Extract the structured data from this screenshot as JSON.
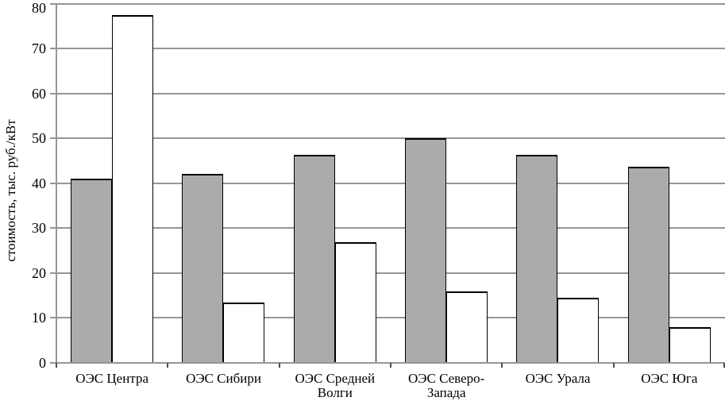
{
  "chart_data": {
    "type": "bar",
    "title": "",
    "xlabel": "",
    "ylabel": "стоимость, тыс. руб./кВт",
    "ylim": [
      0,
      80
    ],
    "yticks": [
      0,
      10,
      20,
      30,
      40,
      50,
      60,
      70,
      80
    ],
    "grid": "horizontal",
    "legend_position": "none",
    "categories": [
      "ОЭС Центра",
      "ОЭС Сибири",
      "ОЭС Средней\nВолги",
      "ОЭС Северо-\nЗапада",
      "ОЭС Урала",
      "ОЭС Юга"
    ],
    "series": [
      {
        "name": "gray-bars",
        "color": "#ABABAB",
        "values": [
          41,
          42,
          46.3,
          50,
          46.3,
          43.7
        ]
      },
      {
        "name": "white-bars",
        "color": "#FFFFFF",
        "values": [
          77.5,
          13.4,
          26.8,
          15.8,
          14.4,
          8
        ]
      }
    ]
  },
  "colors": {
    "background": "#FFFFFF",
    "gridline": "#969696",
    "axis": "#969696",
    "x_tick": "#4D4D4D",
    "bar_border": "#000000",
    "text": "#000000"
  }
}
